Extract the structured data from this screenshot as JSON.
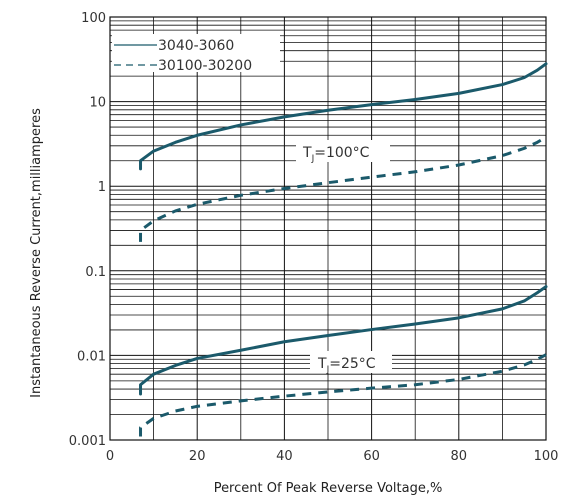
{
  "chart_data": {
    "type": "line",
    "xlabel": "Percent Of Peak Reverse Voltage,%",
    "ylabel": "Instantaneous Reverse Current,milliamperes",
    "x_scale": "linear",
    "y_scale": "log",
    "xlim": [
      0,
      100
    ],
    "ylim": [
      0.001,
      100
    ],
    "x_ticks": [
      "0",
      "20",
      "40",
      "60",
      "80",
      "100"
    ],
    "y_ticks": [
      "0.001",
      "0.01",
      "0.1",
      "1",
      "10",
      "100"
    ],
    "grid": true,
    "legend_position": "top-left",
    "line_color": "#1b5a6b",
    "series": [
      {
        "name": "3040-3060",
        "style": "solid",
        "condition": "T_J=100°C",
        "x": [
          7,
          7,
          10,
          15,
          20,
          30,
          40,
          50,
          60,
          70,
          80,
          90,
          95,
          98,
          100
        ],
        "y": [
          1.6,
          2.0,
          2.6,
          3.3,
          4.0,
          5.3,
          6.6,
          7.9,
          9.2,
          10.6,
          12.5,
          15.9,
          19.2,
          23.5,
          28
        ]
      },
      {
        "name": "30100-30200",
        "style": "dashed",
        "condition": "T_J=100°C",
        "x": [
          7,
          7,
          10,
          15,
          20,
          30,
          40,
          50,
          60,
          70,
          80,
          90,
          95,
          98,
          100
        ],
        "y": [
          0.22,
          0.3,
          0.39,
          0.51,
          0.61,
          0.78,
          0.94,
          1.1,
          1.28,
          1.48,
          1.78,
          2.3,
          2.8,
          3.3,
          3.8
        ]
      },
      {
        "name": "3040-3060",
        "style": "solid",
        "condition": "T_J=25°C",
        "x": [
          7,
          7,
          10,
          15,
          20,
          30,
          40,
          50,
          60,
          70,
          80,
          90,
          95,
          98,
          100
        ],
        "y": [
          0.0035,
          0.0045,
          0.006,
          0.0076,
          0.0092,
          0.0115,
          0.0145,
          0.0172,
          0.0202,
          0.0235,
          0.0278,
          0.0355,
          0.044,
          0.055,
          0.065
        ]
      },
      {
        "name": "30100-30200",
        "style": "dashed",
        "condition": "T_J=25°C",
        "x": [
          7,
          7,
          10,
          15,
          20,
          30,
          40,
          50,
          60,
          70,
          80,
          90,
          95,
          98,
          100
        ],
        "y": [
          0.0011,
          0.0014,
          0.0018,
          0.0022,
          0.0025,
          0.0029,
          0.0033,
          0.0037,
          0.0041,
          0.0045,
          0.0052,
          0.0065,
          0.0077,
          0.009,
          0.0102
        ]
      }
    ],
    "annotations": [
      {
        "base": "T",
        "sub": "J",
        "rest": "=100°C"
      },
      {
        "base": "T",
        "sub": "J",
        "rest": "=25°C"
      }
    ]
  }
}
